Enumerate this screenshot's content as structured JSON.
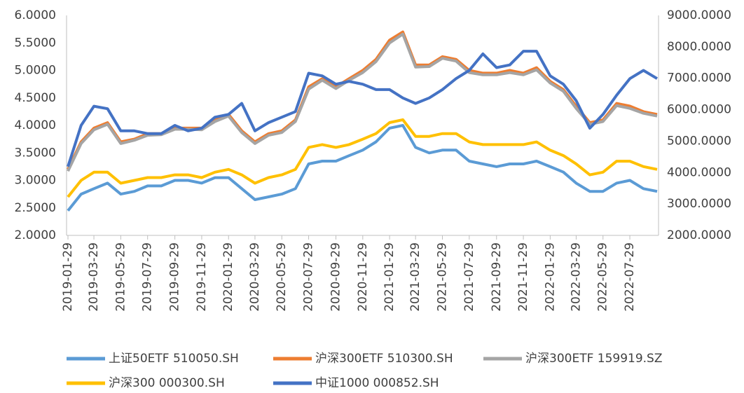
{
  "chart_data": {
    "type": "line",
    "x": [
      "2019-01-29",
      "2019-02-28",
      "2019-03-29",
      "2019-04-29",
      "2019-05-29",
      "2019-06-29",
      "2019-07-29",
      "2019-08-29",
      "2019-09-29",
      "2019-10-29",
      "2019-11-29",
      "2019-12-29",
      "2020-01-29",
      "2020-02-28",
      "2020-03-29",
      "2020-04-29",
      "2020-05-29",
      "2020-06-29",
      "2020-07-29",
      "2020-08-29",
      "2020-09-29",
      "2020-10-29",
      "2020-11-29",
      "2020-12-29",
      "2021-01-29",
      "2021-02-28",
      "2021-03-29",
      "2021-04-29",
      "2021-05-29",
      "2021-06-29",
      "2021-07-29",
      "2021-08-29",
      "2021-09-29",
      "2021-10-29",
      "2021-11-29",
      "2021-12-29",
      "2022-01-29",
      "2022-02-28",
      "2022-03-29",
      "2022-04-29",
      "2022-05-29",
      "2022-06-29",
      "2022-07-29",
      "2022-08-29",
      "2022-09-29"
    ],
    "xticks": [
      "2019-01-29",
      "2019-03-29",
      "2019-05-29",
      "2019-07-29",
      "2019-09-29",
      "2019-11-29",
      "2020-01-29",
      "2020-03-29",
      "2020-05-29",
      "2020-07-29",
      "2020-09-29",
      "2020-11-29",
      "2021-01-29",
      "2021-03-29",
      "2021-05-29",
      "2021-07-29",
      "2021-09-29",
      "2021-11-29",
      "2022-01-29",
      "2022-03-29",
      "2022-05-29",
      "2022-07-29"
    ],
    "ylim": [
      2,
      6
    ],
    "yticks": [
      {
        "value": 2,
        "label": "2.0000"
      },
      {
        "value": 2.5,
        "label": "2.5000"
      },
      {
        "value": 3,
        "label": "3.0000"
      },
      {
        "value": 3.5,
        "label": "3.5000"
      },
      {
        "value": 4,
        "label": "4.0000"
      },
      {
        "value": 4.5,
        "label": "4.5000"
      },
      {
        "value": 5,
        "label": "5.0000"
      },
      {
        "value": 5.5,
        "label": "5.5000"
      },
      {
        "value": 6,
        "label": "6.0000"
      }
    ],
    "y2lim": [
      2000,
      9000
    ],
    "y2ticks": [
      {
        "value": 2000,
        "label": "2000.0000"
      },
      {
        "value": 3000,
        "label": "3000.0000"
      },
      {
        "value": 4000,
        "label": "4000.0000"
      },
      {
        "value": 5000,
        "label": "5000.0000"
      },
      {
        "value": 6000,
        "label": "6000.0000"
      },
      {
        "value": 7000,
        "label": "7000.0000"
      },
      {
        "value": 8000,
        "label": "8000.0000"
      },
      {
        "value": 9000,
        "label": "9000.0000"
      }
    ],
    "series": [
      {
        "name": "上证50ETF 510050.SH",
        "color": "#5b9bd5",
        "values": [
          2.45,
          2.75,
          2.85,
          2.95,
          2.75,
          2.8,
          2.9,
          2.9,
          3.0,
          3.0,
          2.95,
          3.05,
          3.05,
          2.85,
          2.65,
          2.7,
          2.75,
          2.85,
          3.3,
          3.35,
          3.35,
          3.45,
          3.55,
          3.7,
          3.95,
          4.0,
          3.6,
          3.5,
          3.55,
          3.55,
          3.35,
          3.3,
          3.25,
          3.3,
          3.3,
          3.35,
          3.25,
          3.15,
          2.95,
          2.8,
          2.8,
          2.95,
          3.0,
          2.85,
          2.8
        ]
      },
      {
        "name": "沪深300ETF 510300.SH",
        "color": "#ed7d31",
        "values": [
          3.2,
          3.7,
          3.95,
          4.05,
          3.7,
          3.75,
          3.85,
          3.85,
          3.95,
          3.95,
          3.95,
          4.1,
          4.2,
          3.9,
          3.7,
          3.85,
          3.9,
          4.1,
          4.7,
          4.85,
          4.7,
          4.85,
          5.0,
          5.2,
          5.55,
          5.7,
          5.1,
          5.1,
          5.25,
          5.2,
          5.0,
          4.95,
          4.95,
          5.0,
          4.95,
          5.05,
          4.8,
          4.65,
          4.35,
          4.05,
          4.1,
          4.4,
          4.35,
          4.25,
          4.2
        ]
      },
      {
        "name": "沪深300ETF 159919.SZ",
        "color": "#a5a5a5",
        "values": [
          3.17,
          3.67,
          3.92,
          4.02,
          3.67,
          3.73,
          3.82,
          3.83,
          3.93,
          3.93,
          3.92,
          4.07,
          4.17,
          3.87,
          3.67,
          3.82,
          3.87,
          4.07,
          4.66,
          4.82,
          4.67,
          4.82,
          4.96,
          5.16,
          5.5,
          5.66,
          5.06,
          5.07,
          5.22,
          5.17,
          4.96,
          4.92,
          4.92,
          4.96,
          4.92,
          5.01,
          4.77,
          4.62,
          4.31,
          4.02,
          4.07,
          4.36,
          4.31,
          4.22,
          4.17
        ]
      },
      {
        "name": "沪深300 000300.SH",
        "color": "#ffc000",
        "axis": "y2",
        "values": [
          3225,
          3750,
          4010,
          4010,
          3660,
          3750,
          3840,
          3840,
          3925,
          3925,
          3840,
          4010,
          4100,
          3925,
          3660,
          3840,
          3925,
          4100,
          4800,
          4890,
          4800,
          4890,
          5060,
          5240,
          5590,
          5680,
          5150,
          5150,
          5240,
          5240,
          4975,
          4890,
          4890,
          4890,
          4890,
          4975,
          4710,
          4540,
          4275,
          3925,
          4010,
          4360,
          4360,
          4190,
          4100
        ]
      },
      {
        "name": "中证1000 000852.SH",
        "color": "#4472c4",
        "axis": "y2",
        "values": [
          4190,
          5500,
          6110,
          6030,
          5325,
          5325,
          5240,
          5240,
          5500,
          5325,
          5410,
          5760,
          5850,
          6200,
          5325,
          5590,
          5760,
          5940,
          7160,
          7075,
          6810,
          6900,
          6810,
          6640,
          6640,
          6375,
          6200,
          6375,
          6640,
          6990,
          7250,
          7775,
          7340,
          7425,
          7860,
          7860,
          7075,
          6810,
          6290,
          5410,
          5850,
          6460,
          6990,
          7250,
          6990
        ]
      }
    ]
  }
}
